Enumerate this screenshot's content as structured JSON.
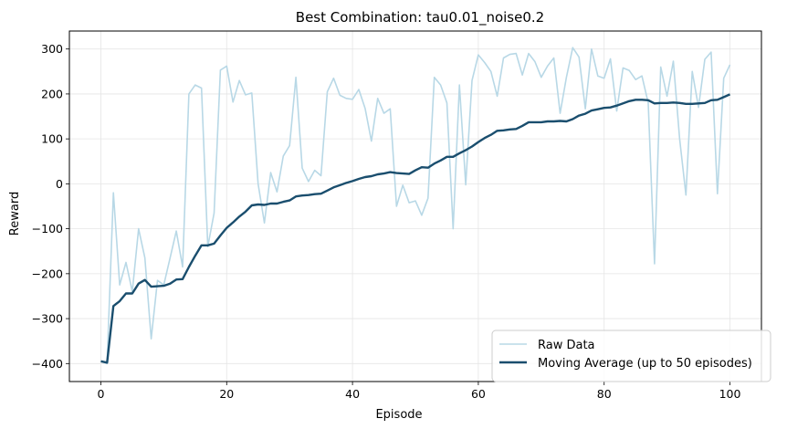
{
  "chart_data": {
    "type": "line",
    "title": "Best Combination: tau0.01_noise0.2",
    "xlabel": "Episode",
    "ylabel": "Reward",
    "xlim": [
      -5,
      105
    ],
    "ylim": [
      -440,
      340
    ],
    "xticks": [
      0,
      20,
      40,
      60,
      80,
      100
    ],
    "yticks": [
      -400,
      -300,
      -200,
      -100,
      0,
      100,
      200,
      300
    ],
    "grid": true,
    "legend_position": "lower-right",
    "series": [
      {
        "name": "Raw Data",
        "color": "#b8d8e6",
        "x": [
          0,
          1,
          2,
          3,
          4,
          5,
          6,
          7,
          8,
          9,
          10,
          11,
          12,
          13,
          14,
          15,
          16,
          17,
          18,
          19,
          20,
          21,
          22,
          23,
          24,
          25,
          26,
          27,
          28,
          29,
          30,
          31,
          32,
          33,
          34,
          35,
          36,
          37,
          38,
          39,
          40,
          41,
          42,
          43,
          44,
          45,
          46,
          47,
          48,
          49,
          50,
          51,
          52,
          53,
          54,
          55,
          56,
          57,
          58,
          59,
          60,
          61,
          62,
          63,
          64,
          65,
          66,
          67,
          68,
          69,
          70,
          71,
          72,
          73,
          74,
          75,
          76,
          77,
          78,
          79,
          80,
          81,
          82,
          83,
          84,
          85,
          86,
          87,
          88,
          89,
          90,
          91,
          92,
          93,
          94,
          95,
          96,
          97,
          98,
          99,
          100
        ],
        "values": [
          -395,
          -400,
          -20,
          -225,
          -175,
          -240,
          -100,
          -165,
          -345,
          -215,
          -225,
          -165,
          -105,
          -185,
          200,
          220,
          213,
          -140,
          -65,
          253,
          262,
          182,
          230,
          198,
          202,
          0,
          -87,
          25,
          -18,
          62,
          85,
          237,
          35,
          5,
          30,
          18,
          205,
          235,
          197,
          190,
          188,
          210,
          168,
          95,
          190,
          157,
          167,
          -50,
          -3,
          -42,
          -38,
          -70,
          -32,
          237,
          220,
          180,
          -100,
          220,
          -2,
          230,
          287,
          270,
          250,
          195,
          280,
          288,
          290,
          242,
          290,
          272,
          237,
          262,
          280,
          157,
          237,
          303,
          282,
          167,
          300,
          240,
          235,
          278,
          162,
          258,
          252,
          232,
          240,
          180,
          -178,
          260,
          195,
          273,
          100,
          -25,
          250,
          170,
          277,
          293,
          -22,
          235,
          265
        ]
      },
      {
        "name": "Moving Average (up to 50 episodes)",
        "color": "#1a4e6e",
        "x": [
          0,
          1,
          2,
          3,
          4,
          5,
          6,
          7,
          8,
          9,
          10,
          11,
          12,
          13,
          14,
          15,
          16,
          17,
          18,
          19,
          20,
          21,
          22,
          23,
          24,
          25,
          26,
          27,
          28,
          29,
          30,
          31,
          32,
          33,
          34,
          35,
          36,
          37,
          38,
          39,
          40,
          41,
          42,
          43,
          44,
          45,
          46,
          47,
          48,
          49,
          50,
          51,
          52,
          53,
          54,
          55,
          56,
          57,
          58,
          59,
          60,
          61,
          62,
          63,
          64,
          65,
          66,
          67,
          68,
          69,
          70,
          71,
          72,
          73,
          74,
          75,
          76,
          77,
          78,
          79,
          80,
          81,
          82,
          83,
          84,
          85,
          86,
          87,
          88,
          89,
          90,
          91,
          92,
          93,
          94,
          95,
          96,
          97,
          98,
          99,
          100
        ],
        "values": [
          -395,
          -398,
          -272,
          -261,
          -244,
          -244,
          -222,
          -214,
          -229,
          -228,
          -227,
          -222,
          -213,
          -212,
          -185,
          -160,
          -137,
          -137,
          -133,
          -115,
          -98,
          -86,
          -73,
          -62,
          -48,
          -46,
          -47,
          -44,
          -44,
          -40,
          -37,
          -28,
          -26,
          -25,
          -23,
          -22,
          -15,
          -8,
          -3,
          2,
          6,
          11,
          15,
          17,
          21,
          23,
          26,
          24,
          23,
          22,
          30,
          37,
          36,
          45,
          52,
          60,
          60,
          68,
          75,
          83,
          93,
          102,
          109,
          118,
          119,
          121,
          122,
          129,
          137,
          137,
          137,
          139,
          139,
          140,
          139,
          144,
          152,
          156,
          163,
          166,
          169,
          170,
          174,
          179,
          184,
          187,
          187,
          186,
          179,
          180,
          180,
          181,
          180,
          178,
          178,
          179,
          180,
          186,
          187,
          193,
          199
        ]
      }
    ]
  }
}
